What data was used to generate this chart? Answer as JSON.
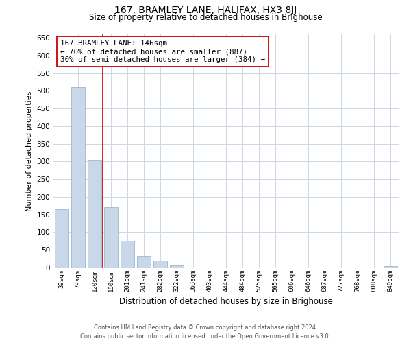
{
  "title": "167, BRAMLEY LANE, HALIFAX, HX3 8JJ",
  "subtitle": "Size of property relative to detached houses in Brighouse",
  "xlabel": "Distribution of detached houses by size in Brighouse",
  "ylabel": "Number of detached properties",
  "bar_labels": [
    "39sqm",
    "79sqm",
    "120sqm",
    "160sqm",
    "201sqm",
    "241sqm",
    "282sqm",
    "322sqm",
    "363sqm",
    "403sqm",
    "444sqm",
    "484sqm",
    "525sqm",
    "565sqm",
    "606sqm",
    "646sqm",
    "687sqm",
    "727sqm",
    "768sqm",
    "808sqm",
    "849sqm"
  ],
  "bar_values": [
    165,
    510,
    305,
    170,
    76,
    33,
    20,
    5,
    0,
    0,
    0,
    0,
    0,
    0,
    0,
    0,
    0,
    0,
    0,
    0,
    3
  ],
  "bar_color": "#c8d8e8",
  "bar_edge_color": "#a0b8cc",
  "annotation_title": "167 BRAMLEY LANE: 146sqm",
  "annotation_line1": "← 70% of detached houses are smaller (887)",
  "annotation_line2": "30% of semi-detached houses are larger (384) →",
  "vline_x_idx": 2.5,
  "vline_color": "#cc0000",
  "annotation_box_edge_color": "#cc0000",
  "ylim": [
    0,
    660
  ],
  "yticks": [
    0,
    50,
    100,
    150,
    200,
    250,
    300,
    350,
    400,
    450,
    500,
    550,
    600,
    650
  ],
  "footer_line1": "Contains HM Land Registry data © Crown copyright and database right 2024.",
  "footer_line2": "Contains public sector information licensed under the Open Government Licence v3.0.",
  "background_color": "#ffffff",
  "grid_color": "#ccd8e4"
}
